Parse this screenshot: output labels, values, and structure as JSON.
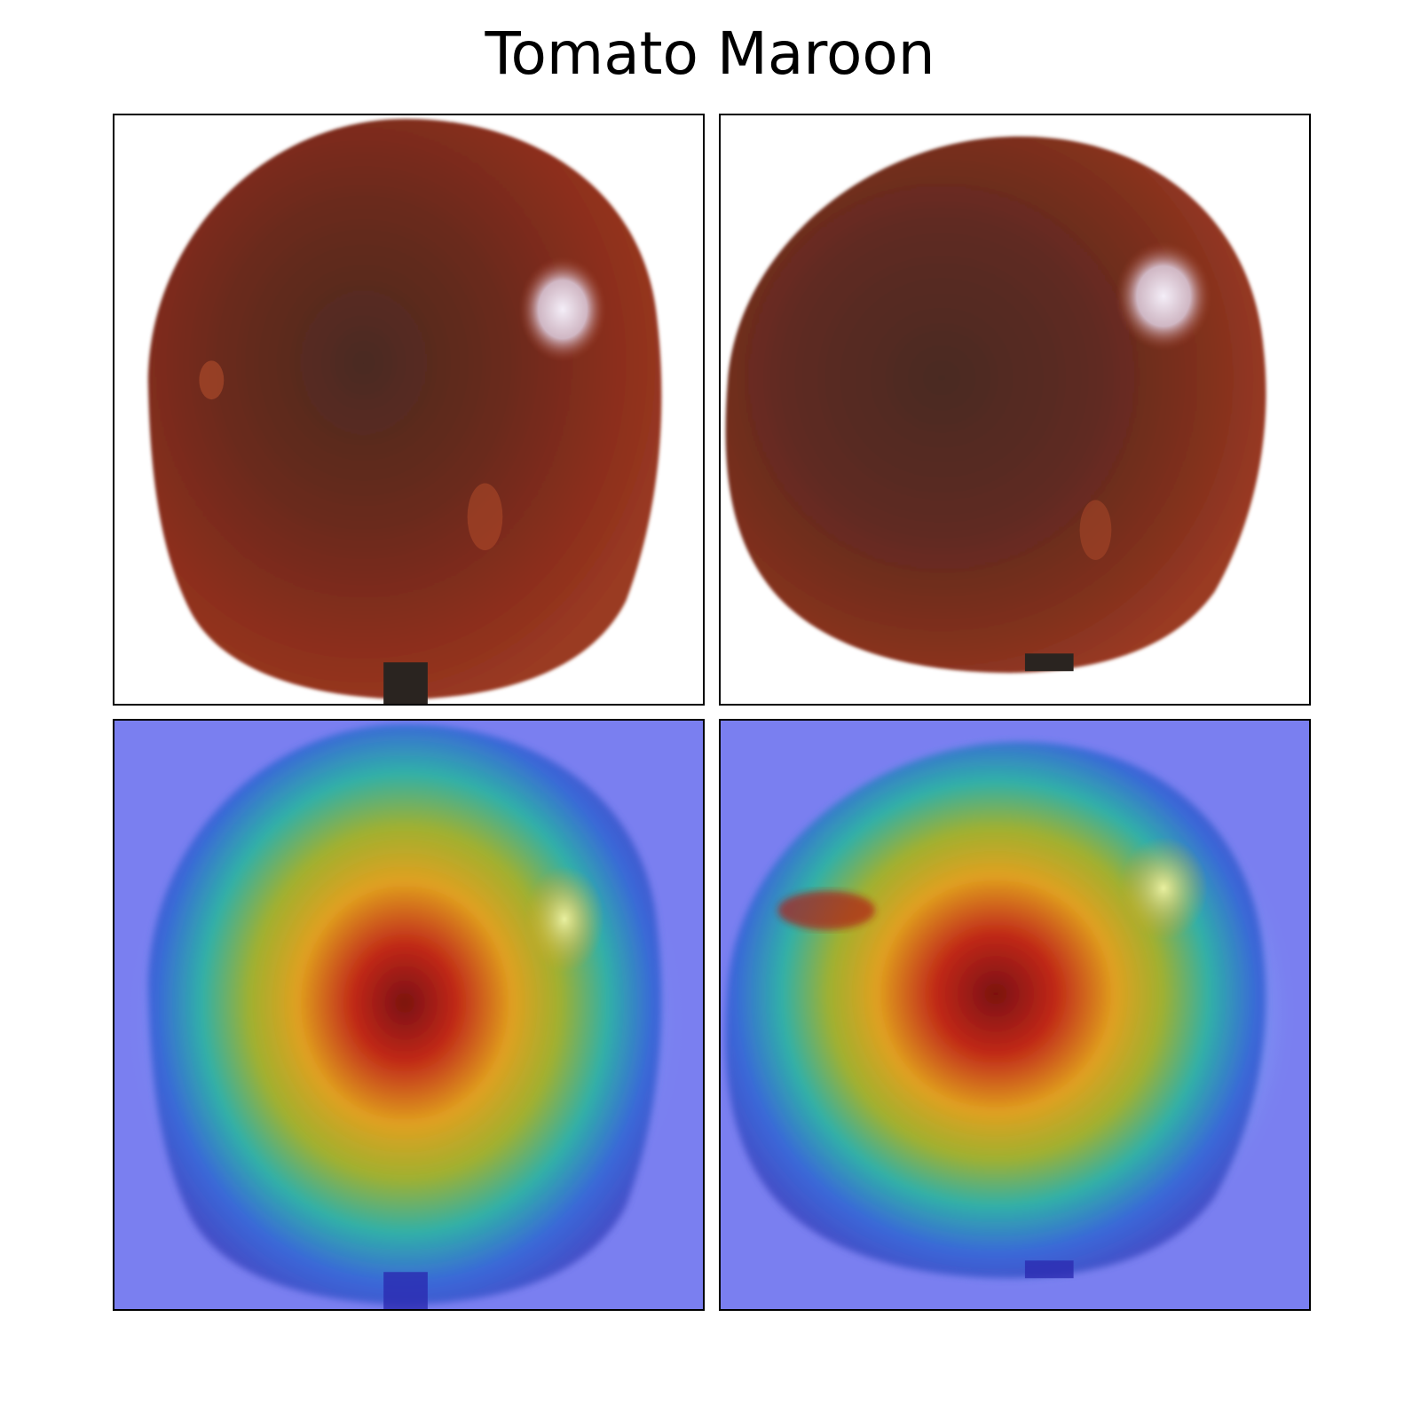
{
  "figure": {
    "title": "Tomato Maroon"
  },
  "panels": [
    {
      "name": "photo",
      "icon": "tomato-photo-image"
    },
    {
      "name": "photo",
      "icon": "tomato-photo-image"
    },
    {
      "name": "heatmap",
      "icon": "activation-heatmap-overlay"
    },
    {
      "name": "heatmap",
      "icon": "activation-heatmap-overlay"
    }
  ],
  "colors": {
    "background": "#ffffff",
    "panel_border": "#000000",
    "tomato_dark": "#4a2a22",
    "tomato_mid": "#8c2e1c",
    "tomato_highlight": "#e8e2f0",
    "heatmap_background": "#7a7ff0",
    "heatmap_hot": "#8b1010",
    "heatmap_warm": "#e0a020",
    "heatmap_cool": "#30b8b0"
  }
}
